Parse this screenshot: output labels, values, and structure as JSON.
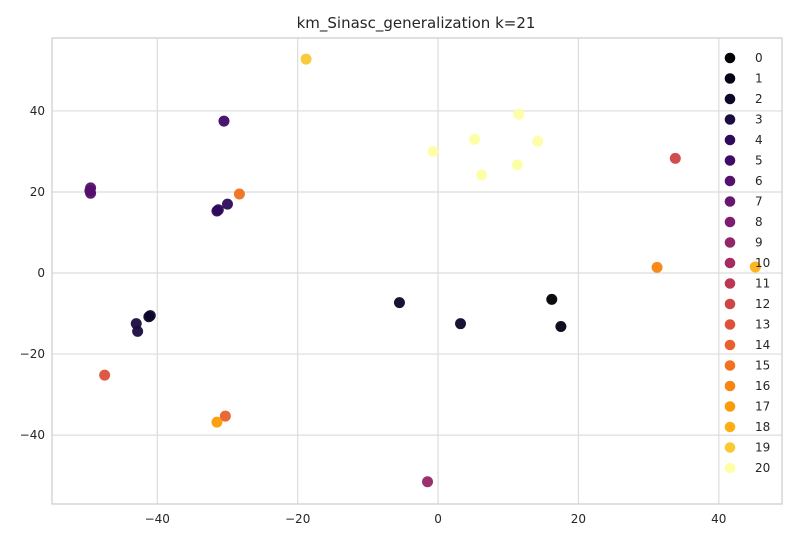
{
  "chart_data": {
    "type": "scatter",
    "title": "km_Sinasc_generalization k=21",
    "xlabel": "",
    "ylabel": "",
    "xlim": [
      -55,
      49
    ],
    "ylim": [
      -57,
      58
    ],
    "grid": true,
    "xticks": [
      -40,
      -20,
      0,
      20,
      40
    ],
    "yticks": [
      -40,
      -20,
      0,
      20,
      40
    ],
    "legend_position": "right",
    "series": [
      {
        "name": "0",
        "color": "#000004",
        "points": [
          [
            16.2,
            -6.5
          ]
        ]
      },
      {
        "name": "1",
        "color": "#040312",
        "points": [
          [
            17.5,
            -13.2
          ]
        ]
      },
      {
        "name": "2",
        "color": "#0d0829",
        "points": [
          [
            -41.0,
            -10.5
          ],
          [
            -41.2,
            -10.8
          ],
          [
            3.2,
            -12.5
          ],
          [
            -5.5,
            -7.3
          ]
        ]
      },
      {
        "name": "3",
        "color": "#1b0c41",
        "points": [
          [
            -43.0,
            -12.5
          ],
          [
            -42.8,
            -14.4
          ]
        ]
      },
      {
        "name": "4",
        "color": "#2f0a5b",
        "points": [
          [
            -31.5,
            15.3
          ],
          [
            -30.0,
            17.0
          ],
          [
            -31.3,
            15.6
          ]
        ]
      },
      {
        "name": "5",
        "color": "#420a68",
        "points": [
          [
            -30.5,
            37.5
          ]
        ]
      },
      {
        "name": "6",
        "color": "#550f6d",
        "points": [
          [
            -49.5,
            19.7
          ],
          [
            -49.6,
            20.3
          ],
          [
            -49.5,
            21.0
          ]
        ]
      },
      {
        "name": "7",
        "color": "#69166e",
        "points": []
      },
      {
        "name": "8",
        "color": "#7c1d6f",
        "points": []
      },
      {
        "name": "9",
        "color": "#932667",
        "points": [
          [
            -1.5,
            -51.5
          ]
        ]
      },
      {
        "name": "10",
        "color": "#a52c60",
        "points": []
      },
      {
        "name": "11",
        "color": "#bc3754",
        "points": []
      },
      {
        "name": "12",
        "color": "#cf4446",
        "points": [
          [
            33.8,
            28.3
          ]
        ]
      },
      {
        "name": "13",
        "color": "#dd513a",
        "points": [
          [
            -47.5,
            -25.2
          ]
        ]
      },
      {
        "name": "14",
        "color": "#e8602d",
        "points": [
          [
            -30.3,
            -35.3
          ]
        ]
      },
      {
        "name": "15",
        "color": "#f1711f",
        "points": [
          [
            -28.3,
            19.5
          ]
        ]
      },
      {
        "name": "16",
        "color": "#f8850f",
        "points": [
          [
            31.2,
            1.4
          ]
        ]
      },
      {
        "name": "17",
        "color": "#fb9b06",
        "points": [
          [
            -31.5,
            -36.8
          ]
        ]
      },
      {
        "name": "18",
        "color": "#fcb014",
        "points": [
          [
            45.2,
            1.5
          ]
        ]
      },
      {
        "name": "19",
        "color": "#f9c932",
        "points": [
          [
            -18.8,
            52.8
          ]
        ]
      },
      {
        "name": "20",
        "color": "#fcffa4",
        "points": [
          [
            -0.7,
            30.0
          ],
          [
            5.2,
            33.0
          ],
          [
            6.2,
            24.2
          ],
          [
            11.5,
            39.2
          ],
          [
            11.3,
            26.7
          ],
          [
            14.2,
            32.5
          ]
        ]
      }
    ]
  }
}
